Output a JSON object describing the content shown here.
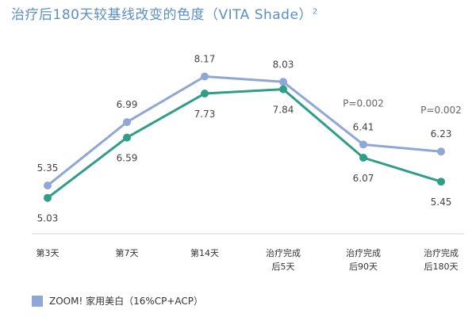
{
  "title": "治疗后180天较基线改变的色度（VITA Shade）",
  "title_sup": "2",
  "chart_data": {
    "type": "line",
    "title": "治疗后180天较基线改变的色度（VITA Shade）",
    "xlabel": "",
    "ylabel": "",
    "grid": false,
    "legend": "bottom-left",
    "categories": [
      [
        "第3天"
      ],
      [
        "第7天"
      ],
      [
        "第14天"
      ],
      [
        "治疗完成",
        "后5天"
      ],
      [
        "治疗完成",
        "后90天"
      ],
      [
        "治疗完成",
        "后180天"
      ]
    ],
    "series": [
      {
        "name": "ZOOM! 家用美白（16%CP+ACP）",
        "color": "#8fa7d6",
        "values": [
          5.35,
          6.99,
          8.17,
          8.03,
          6.41,
          6.23
        ],
        "labels": [
          "5.35",
          "6.99",
          "8.17",
          "8.03",
          "6.41",
          "6.23"
        ]
      },
      {
        "name": "",
        "color": "#2e9e86",
        "values": [
          5.03,
          6.59,
          7.73,
          7.84,
          6.07,
          5.45
        ],
        "labels": [
          "5.03",
          "6.59",
          "7.73",
          "7.84",
          "6.07",
          "5.45"
        ]
      }
    ],
    "annotations": [
      {
        "category_index": 4,
        "text": "P=0.002"
      },
      {
        "category_index": 5,
        "text": "P=0.002"
      }
    ],
    "ylim": [
      4.0,
      9.0
    ]
  }
}
